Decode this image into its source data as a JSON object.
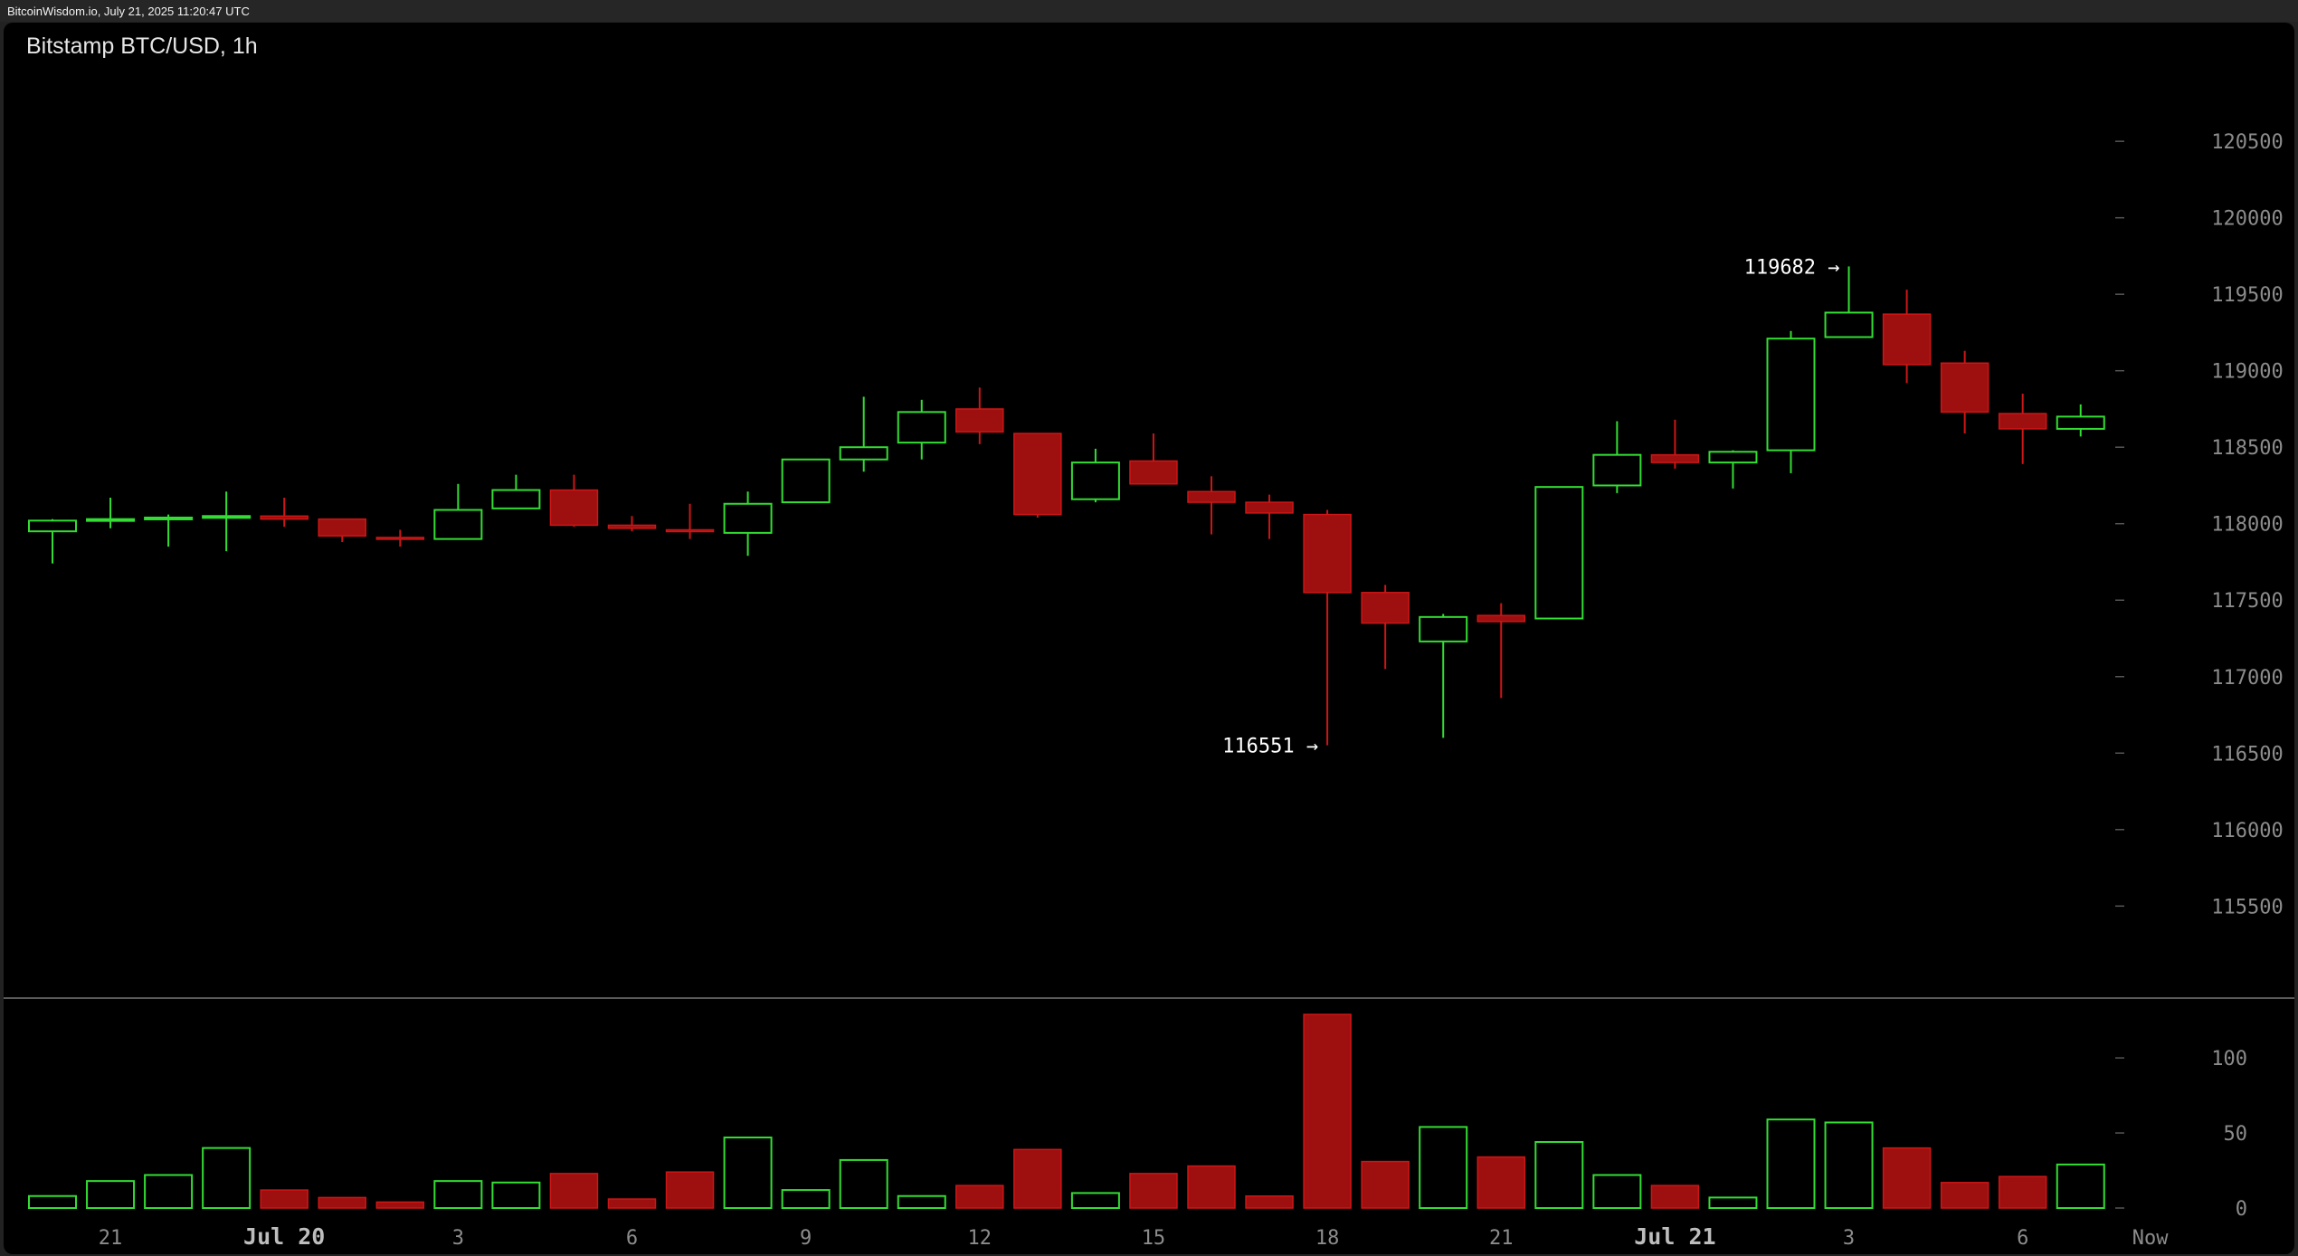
{
  "header": {
    "stamp": "BitcoinWisdom.io, July 21, 2025 11:20:47 UTC"
  },
  "chart_title": "Bitstamp BTC/USD, 1h",
  "colors": {
    "up": "#33dd33",
    "down": "#9e0f0f",
    "down_edge": "#cc1616",
    "background": "#000000",
    "axis_text": "#8c8c8c",
    "separator": "#5a5a5a"
  },
  "chart_data": [
    {
      "type": "candlestick",
      "title": "Bitstamp BTC/USD, 1h",
      "xlabel": "",
      "ylabel": "",
      "ylim": [
        115200,
        120850
      ],
      "y_ticks": [
        120500,
        120000,
        119500,
        119000,
        118500,
        118000,
        117500,
        117000,
        116500,
        116000,
        115500
      ],
      "x_ticks": [
        {
          "label": "21",
          "index": 1,
          "bold": false
        },
        {
          "label": "Jul 20",
          "index": 4,
          "bold": true
        },
        {
          "label": "3",
          "index": 7,
          "bold": false
        },
        {
          "label": "6",
          "index": 10,
          "bold": false
        },
        {
          "label": "9",
          "index": 13,
          "bold": false
        },
        {
          "label": "12",
          "index": 16,
          "bold": false
        },
        {
          "label": "15",
          "index": 19,
          "bold": false
        },
        {
          "label": "18",
          "index": 22,
          "bold": false
        },
        {
          "label": "21",
          "index": 25,
          "bold": false
        },
        {
          "label": "Jul 21",
          "index": 28,
          "bold": true
        },
        {
          "label": "3",
          "index": 31,
          "bold": false
        },
        {
          "label": "6",
          "index": 34,
          "bold": false
        },
        {
          "label": "Now",
          "index": 36.2,
          "bold": false
        }
      ],
      "candles": [
        {
          "o": 117950,
          "h": 118030,
          "l": 117740,
          "c": 118020
        },
        {
          "o": 118020,
          "h": 118170,
          "l": 117970,
          "c": 118030
        },
        {
          "o": 118030,
          "h": 118060,
          "l": 117850,
          "c": 118040
        },
        {
          "o": 118040,
          "h": 118210,
          "l": 117820,
          "c": 118050
        },
        {
          "o": 118050,
          "h": 118170,
          "l": 117980,
          "c": 118030
        },
        {
          "o": 118030,
          "h": 118030,
          "l": 117880,
          "c": 117920
        },
        {
          "o": 117910,
          "h": 117960,
          "l": 117850,
          "c": 117900
        },
        {
          "o": 117900,
          "h": 118260,
          "l": 117900,
          "c": 118090
        },
        {
          "o": 118100,
          "h": 118320,
          "l": 118100,
          "c": 118220
        },
        {
          "o": 118220,
          "h": 118320,
          "l": 117980,
          "c": 117990
        },
        {
          "o": 117990,
          "h": 118050,
          "l": 117950,
          "c": 117970
        },
        {
          "o": 117960,
          "h": 118130,
          "l": 117900,
          "c": 117950
        },
        {
          "o": 117940,
          "h": 118210,
          "l": 117790,
          "c": 118130
        },
        {
          "o": 118140,
          "h": 118420,
          "l": 118140,
          "c": 118420
        },
        {
          "o": 118420,
          "h": 118830,
          "l": 118340,
          "c": 118500
        },
        {
          "o": 118530,
          "h": 118810,
          "l": 118420,
          "c": 118730
        },
        {
          "o": 118750,
          "h": 118890,
          "l": 118520,
          "c": 118600
        },
        {
          "o": 118590,
          "h": 118590,
          "l": 118040,
          "c": 118060
        },
        {
          "o": 118160,
          "h": 118490,
          "l": 118140,
          "c": 118400
        },
        {
          "o": 118410,
          "h": 118590,
          "l": 118260,
          "c": 118260
        },
        {
          "o": 118210,
          "h": 118310,
          "l": 117930,
          "c": 118140
        },
        {
          "o": 118140,
          "h": 118190,
          "l": 117900,
          "c": 118070
        },
        {
          "o": 118060,
          "h": 118090,
          "l": 116551,
          "c": 117550
        },
        {
          "o": 117550,
          "h": 117600,
          "l": 117050,
          "c": 117350
        },
        {
          "o": 117230,
          "h": 117410,
          "l": 116600,
          "c": 117390
        },
        {
          "o": 117400,
          "h": 117480,
          "l": 116860,
          "c": 117360
        },
        {
          "o": 117380,
          "h": 118240,
          "l": 117380,
          "c": 118240
        },
        {
          "o": 118250,
          "h": 118670,
          "l": 118200,
          "c": 118450
        },
        {
          "o": 118450,
          "h": 118680,
          "l": 118360,
          "c": 118400
        },
        {
          "o": 118400,
          "h": 118480,
          "l": 118230,
          "c": 118470
        },
        {
          "o": 118480,
          "h": 119260,
          "l": 118330,
          "c": 119210
        },
        {
          "o": 119220,
          "h": 119682,
          "l": 119220,
          "c": 119380
        },
        {
          "o": 119370,
          "h": 119530,
          "l": 118920,
          "c": 119040
        },
        {
          "o": 119050,
          "h": 119130,
          "l": 118590,
          "c": 118730
        },
        {
          "o": 118720,
          "h": 118850,
          "l": 118390,
          "c": 118620
        },
        {
          "o": 118620,
          "h": 118780,
          "l": 118570,
          "c": 118700
        }
      ],
      "annotations": [
        {
          "label": "119682 →",
          "index": 31,
          "value": 119682
        },
        {
          "label": "116551 →",
          "index": 22,
          "value": 116551
        }
      ]
    },
    {
      "type": "bar",
      "title": "",
      "xlabel": "",
      "ylabel": "",
      "ylim": [
        0,
        129
      ],
      "y_ticks": [
        100,
        50,
        0
      ],
      "values": [
        8,
        18,
        22,
        40,
        12,
        7,
        4,
        18,
        17,
        23,
        6,
        24,
        47,
        12,
        32,
        8,
        15,
        39,
        10,
        23,
        28,
        8,
        129,
        31,
        54,
        34,
        44,
        22,
        15,
        7,
        59,
        57,
        40,
        17,
        21,
        29
      ]
    }
  ]
}
